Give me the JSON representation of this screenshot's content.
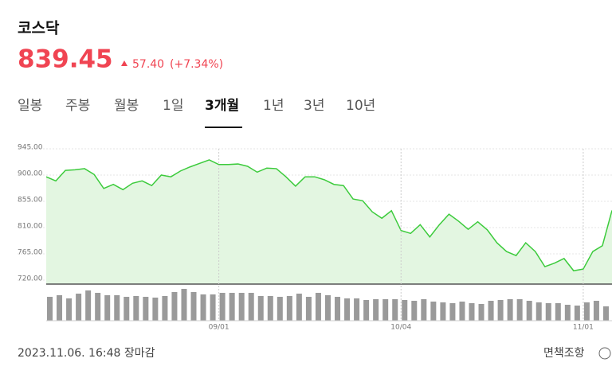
{
  "header": {
    "title": "코스닥",
    "price": "839.45",
    "change": "57.40",
    "change_pct": "(+7.34%)"
  },
  "tabs": {
    "items": [
      "일봉",
      "주봉",
      "월봉",
      "1일",
      "3개월",
      "1년",
      "3년",
      "10년"
    ],
    "active": 4
  },
  "chart_data": [
    {
      "type": "area",
      "categories": [
        null,
        null,
        null,
        null,
        null,
        null,
        null,
        null,
        null,
        null,
        null,
        null,
        null,
        null,
        null,
        null,
        null,
        null,
        "09/01",
        null,
        null,
        null,
        null,
        null,
        null,
        null,
        null,
        null,
        null,
        null,
        null,
        null,
        null,
        null,
        null,
        null,
        null,
        "10/04",
        null,
        null,
        null,
        null,
        null,
        null,
        null,
        null,
        null,
        null,
        null,
        null,
        null,
        null,
        null,
        null,
        null,
        null,
        "11/01",
        null,
        null,
        null
      ],
      "series": [
        {
          "name": "코스닥",
          "color": "#3ccb3c",
          "values": [
            897,
            890,
            908,
            909,
            911,
            901,
            877,
            884,
            875,
            886,
            890,
            882,
            900,
            897,
            907,
            914,
            920,
            926,
            918,
            918,
            919,
            915,
            905,
            912,
            911,
            897,
            881,
            897,
            897,
            892,
            884,
            882,
            859,
            856,
            837,
            826,
            839,
            805,
            800,
            815,
            794,
            815,
            833,
            821,
            807,
            820,
            806,
            784,
            769,
            762,
            784,
            769,
            743,
            749,
            757,
            736,
            739,
            769,
            779,
            839.45
          ]
        }
      ],
      "ylim": [
        720,
        945
      ],
      "yticks": [
        {
          "value": 720,
          "label": "720.00"
        },
        {
          "value": 765,
          "label": "765.00"
        },
        {
          "value": 810,
          "label": "810.00"
        },
        {
          "value": 855,
          "label": "855.00"
        },
        {
          "value": 900,
          "label": "900.00"
        },
        {
          "value": 945,
          "label": "945.00"
        }
      ],
      "grid": true
    },
    {
      "type": "bar",
      "color": "#9a9a9a",
      "values": [
        30,
        32,
        28,
        34,
        38,
        35,
        32,
        32,
        30,
        31,
        30,
        29,
        31,
        36,
        40,
        36,
        33,
        33,
        35,
        35,
        35,
        35,
        31,
        31,
        30,
        31,
        34,
        30,
        35,
        32,
        30,
        28,
        28,
        26,
        27,
        27,
        27,
        26,
        25,
        27,
        24,
        23,
        22,
        24,
        22,
        21,
        25,
        26,
        27,
        27,
        25,
        23,
        22,
        22,
        20,
        19,
        23,
        25,
        18,
        22
      ]
    }
  ],
  "footer": {
    "timestamp": "2023.11.06. 16:48 장마감",
    "disclaimer": "면책조항"
  }
}
